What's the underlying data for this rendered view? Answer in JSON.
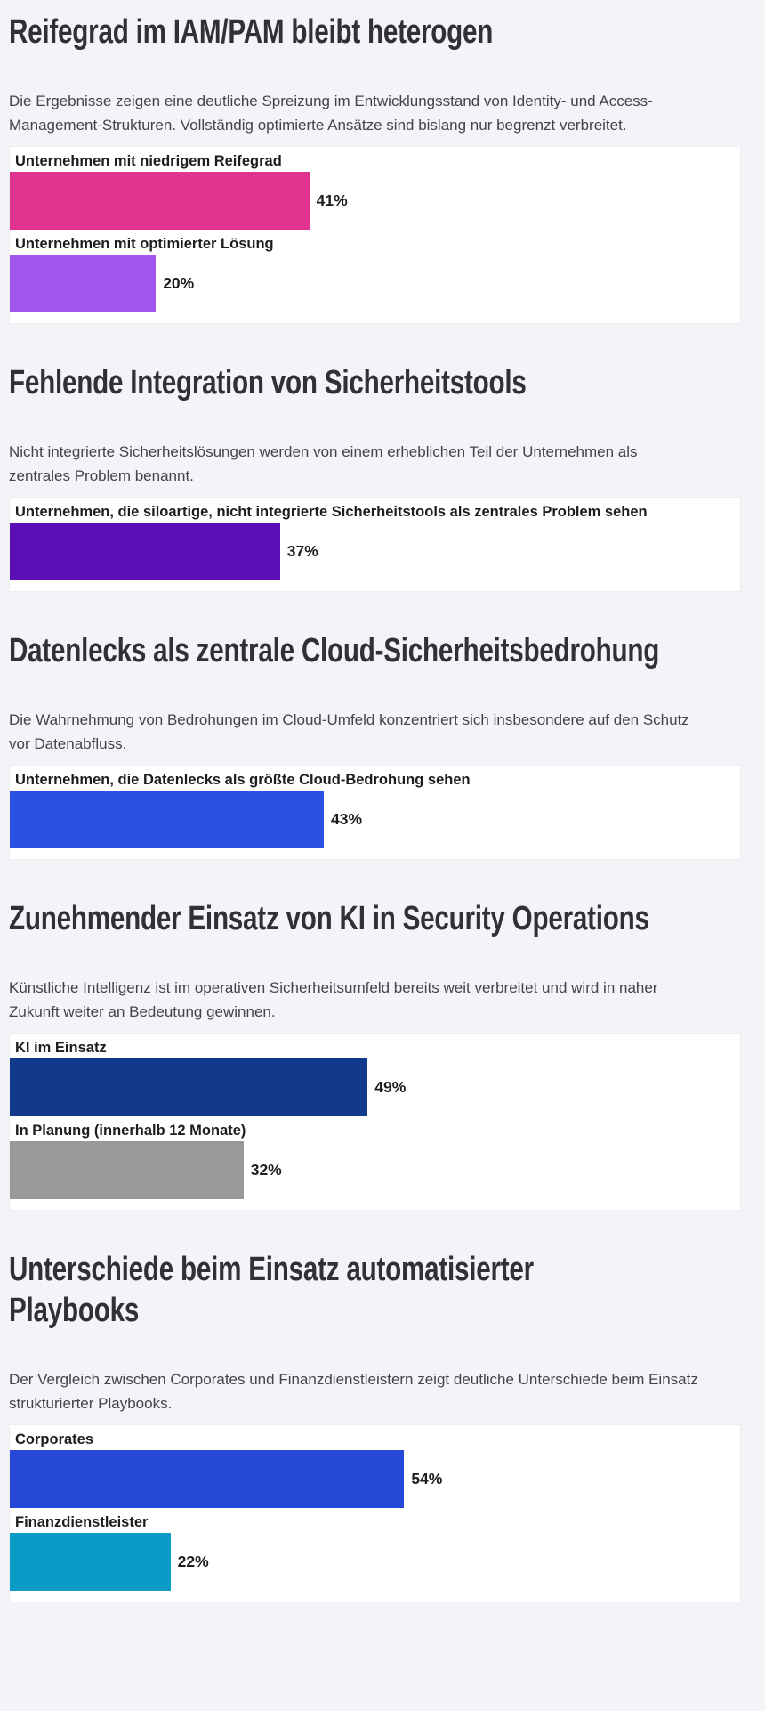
{
  "page": {
    "background_color": "#f3f4f7",
    "card_color": "#ffffff",
    "title_color": "#303035",
    "text_color": "#43434a"
  },
  "sections": [
    {
      "title": "Reifegrad im IAM/PAM bleibt heterogen",
      "description": "Die Ergebnisse zeigen eine deutliche Spreizung im Entwicklungsstand von Identity- und Access-\nManagement-Strukturen. Vollständig optimierte Ansätze sind bislang nur begrenzt verbreitet."
    },
    {
      "title": "Fehlende Integration von Sicherheitstools",
      "description": "Nicht integrierte Sicherheitslösungen werden von einem erheblichen Teil der Unternehmen als\nzentrales Problem benannt."
    },
    {
      "title": "Datenlecks als zentrale Cloud-Sicherheitsbedrohung",
      "description": "Die Wahrnehmung von Bedrohungen im Cloud-Umfeld konzentriert sich insbesondere auf den Schutz\nvor Datenabfluss."
    },
    {
      "title": "Zunehmender Einsatz von KI in Security Operations",
      "description": "Künstliche Intelligenz ist im operativen Sicherheitsumfeld bereits weit verbreitet und wird in naher\nZukunft weiter an Bedeutung gewinnen."
    },
    {
      "title": "Unterschiede beim Einsatz automatisierter\nPlaybooks",
      "description": "Der Vergleich zwischen Corporates und Finanzdienstleistern zeigt deutliche Unterschiede beim Einsatz\nstrukturierter Playbooks."
    }
  ],
  "chart_data": [
    {
      "type": "bar",
      "orientation": "horizontal",
      "title": "Reifegrad im IAM/PAM bleibt heterogen",
      "categories": [
        "Unternehmen mit niedrigem Reifegrad",
        "Unternehmen mit optimierter Lösung"
      ],
      "values": [
        41,
        20
      ],
      "value_labels": [
        "41%",
        "20%"
      ],
      "colors": [
        "#e0338f",
        "#a355ef"
      ],
      "xlim": [
        0,
        100
      ],
      "grid": false,
      "legend": false
    },
    {
      "type": "bar",
      "orientation": "horizontal",
      "title": "Fehlende Integration von Sicherheitstools",
      "categories": [
        "Unternehmen, die siloartige, nicht integrierte Sicherheitstools als zentrales Problem sehen"
      ],
      "values": [
        37
      ],
      "value_labels": [
        "37%"
      ],
      "colors": [
        "#5a0fb5"
      ],
      "xlim": [
        0,
        100
      ],
      "grid": false,
      "legend": false
    },
    {
      "type": "bar",
      "orientation": "horizontal",
      "title": "Datenlecks als zentrale Cloud-Sicherheitsbedrohung",
      "categories": [
        "Unternehmen, die Datenlecks als größte Cloud-Bedrohung sehen"
      ],
      "values": [
        43
      ],
      "value_labels": [
        "43%"
      ],
      "colors": [
        "#2b50e4"
      ],
      "xlim": [
        0,
        100
      ],
      "grid": false,
      "legend": false
    },
    {
      "type": "bar",
      "orientation": "horizontal",
      "title": "Zunehmender Einsatz von KI in Security Operations",
      "categories": [
        "KI im Einsatz",
        "In Planung (innerhalb 12 Monate)"
      ],
      "values": [
        49,
        32
      ],
      "value_labels": [
        "49%",
        "32%"
      ],
      "colors": [
        "#113a8d",
        "#999999"
      ],
      "xlim": [
        0,
        100
      ],
      "grid": false,
      "legend": false
    },
    {
      "type": "bar",
      "orientation": "horizontal",
      "title": "Unterschiede beim Einsatz automatisierter Playbooks",
      "categories": [
        "Corporates",
        "Finanzdienstleister"
      ],
      "values": [
        54,
        22
      ],
      "value_labels": [
        "54%",
        "22%"
      ],
      "colors": [
        "#2549d6",
        "#0a9cc6"
      ],
      "xlim": [
        0,
        100
      ],
      "grid": false,
      "legend": false
    }
  ]
}
